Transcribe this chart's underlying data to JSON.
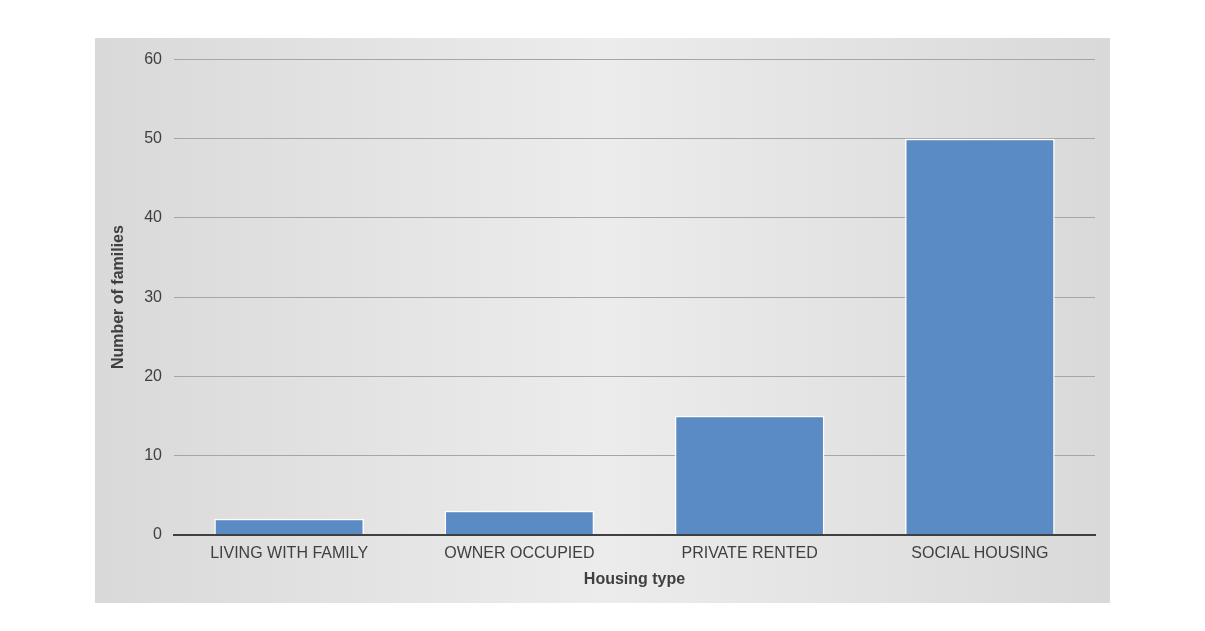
{
  "chart_data": {
    "type": "bar",
    "xlabel": "Housing type",
    "ylabel": "Number of families",
    "categories": [
      "LIVING WITH FAMILY",
      "OWNER OCCUPIED",
      "PRIVATE RENTED",
      "SOCIAL HOUSING"
    ],
    "values": [
      2,
      3,
      15,
      50
    ],
    "color": "#5b8bc5",
    "ylim": [
      0,
      60
    ],
    "yticks": [
      0,
      10,
      20,
      30,
      40,
      50,
      60
    ],
    "grid": "y"
  }
}
